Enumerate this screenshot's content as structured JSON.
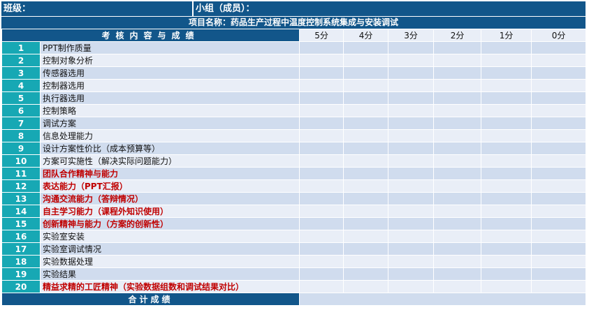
{
  "header": {
    "class_label": "班级：",
    "group_label": "小组（成员）：",
    "project_label": "项目名称：药品生产过程中温度控制系统集成与安装调试"
  },
  "table": {
    "title": "考核内容与成绩",
    "score_columns": [
      "5分",
      "4分",
      "3分",
      "2分",
      "1分",
      "0分"
    ],
    "rows": [
      {
        "no": "1",
        "item": "PPT制作质量",
        "highlight": false
      },
      {
        "no": "2",
        "item": "控制对象分析",
        "highlight": false
      },
      {
        "no": "3",
        "item": "传感器选用",
        "highlight": false
      },
      {
        "no": "4",
        "item": "控制器选用",
        "highlight": false
      },
      {
        "no": "5",
        "item": "执行器选用",
        "highlight": false
      },
      {
        "no": "6",
        "item": "控制策略",
        "highlight": false
      },
      {
        "no": "7",
        "item": "调试方案",
        "highlight": false
      },
      {
        "no": "8",
        "item": "信息处理能力",
        "highlight": false
      },
      {
        "no": "9",
        "item": "设计方案性价比（成本预算等）",
        "highlight": false
      },
      {
        "no": "10",
        "item": "方案可实施性（解决实际问题能力）",
        "highlight": false
      },
      {
        "no": "11",
        "item": "团队合作精神与能力",
        "highlight": true
      },
      {
        "no": "12",
        "item": "表达能力（PPT汇报）",
        "highlight": true
      },
      {
        "no": "13",
        "item": "沟通交流能力（答辩情况）",
        "highlight": true
      },
      {
        "no": "14",
        "item": "自主学习能力（课程外知识使用）",
        "highlight": true
      },
      {
        "no": "15",
        "item": "创新精神与能力（方案的创新性）",
        "highlight": true
      },
      {
        "no": "16",
        "item": "实验室安装",
        "highlight": false
      },
      {
        "no": "17",
        "item": "实验室调试情况",
        "highlight": false
      },
      {
        "no": "18",
        "item": "实验数据处理",
        "highlight": false
      },
      {
        "no": "19",
        "item": "实验结果",
        "highlight": false
      },
      {
        "no": "20",
        "item": "精益求精的工匠精神（实验数据组数和调试结果对比）",
        "highlight": true
      }
    ],
    "total_label": "合计成绩"
  },
  "colors": {
    "dark_blue": "#12568A",
    "teal": "#17A8B4",
    "row_a": "#D0DCEE",
    "row_b": "#E9EEF7",
    "highlight_red": "#C00000"
  }
}
